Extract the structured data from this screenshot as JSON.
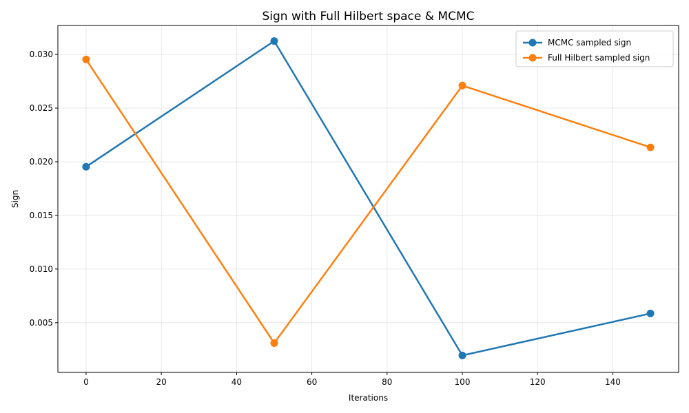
{
  "chart_data": {
    "type": "line",
    "title": "Sign with Full Hilbert space & MCMC",
    "xlabel": "Iterations",
    "ylabel": "Sign",
    "x": [
      0,
      50,
      100,
      150
    ],
    "xlim": [
      -7.5,
      157.5
    ],
    "ylim": [
      0.00037,
      0.0327
    ],
    "xticks": [
      0,
      20,
      40,
      60,
      80,
      100,
      120,
      140
    ],
    "xtick_labels": [
      "0",
      "20",
      "40",
      "60",
      "80",
      "100",
      "120",
      "140"
    ],
    "yticks": [
      0.005,
      0.01,
      0.015,
      0.02,
      0.025,
      0.03
    ],
    "ytick_labels": [
      "0.005",
      "0.010",
      "0.015",
      "0.020",
      "0.025",
      "0.030"
    ],
    "grid": true,
    "legend_position": "top-right",
    "series": [
      {
        "name": "MCMC sampled sign",
        "color": "#1f77b4",
        "values": [
          0.01953,
          0.03125,
          0.00195,
          0.00586
        ]
      },
      {
        "name": "Full Hilbert sampled sign",
        "color": "#ff7f0e",
        "values": [
          0.02953,
          0.0031,
          0.0271,
          0.02134
        ]
      }
    ]
  }
}
